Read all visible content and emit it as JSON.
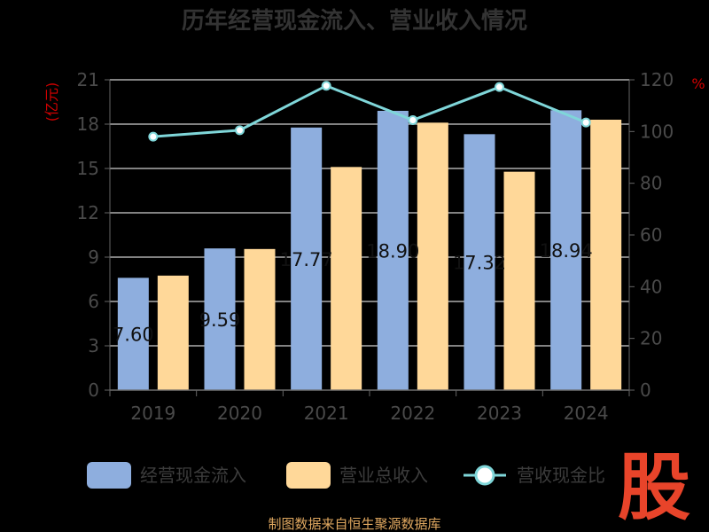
{
  "chart_data": {
    "type": "bar",
    "title": "历年经营现金流入、营业收入情况",
    "categories": [
      "2019",
      "2020",
      "2021",
      "2022",
      "2023",
      "2024"
    ],
    "left_axis": {
      "unit": "(亿元)",
      "ylim": [
        0,
        21
      ],
      "ticks": [
        0,
        3,
        6,
        9,
        12,
        15,
        18,
        21
      ]
    },
    "right_axis": {
      "unit": "%",
      "ylim": [
        0,
        120
      ],
      "ticks": [
        0,
        20,
        40,
        60,
        80,
        100,
        120
      ]
    },
    "series": [
      {
        "name": "经营现金流入",
        "type": "bar",
        "axis": "left",
        "color": "#8eaede",
        "values": [
          7.6,
          9.59,
          17.77,
          18.9,
          17.32,
          18.94
        ],
        "labels": [
          "7.60",
          "9.59",
          "17.77",
          "18.90",
          "17.32",
          "18.94"
        ]
      },
      {
        "name": "营业总收入",
        "type": "bar",
        "axis": "left",
        "color": "#ffd899",
        "values": [
          7.75,
          9.55,
          15.1,
          18.1,
          14.78,
          18.3
        ]
      },
      {
        "name": "营收现金比",
        "type": "line",
        "axis": "right",
        "color": "#7fd6d9",
        "values": [
          98,
          100.5,
          117.7,
          104.4,
          117.2,
          103.5
        ]
      }
    ],
    "grid": true,
    "legend_position": "bottom"
  },
  "footer": {
    "source": "制图数据来自恒生聚源数据库",
    "logo": "股"
  }
}
